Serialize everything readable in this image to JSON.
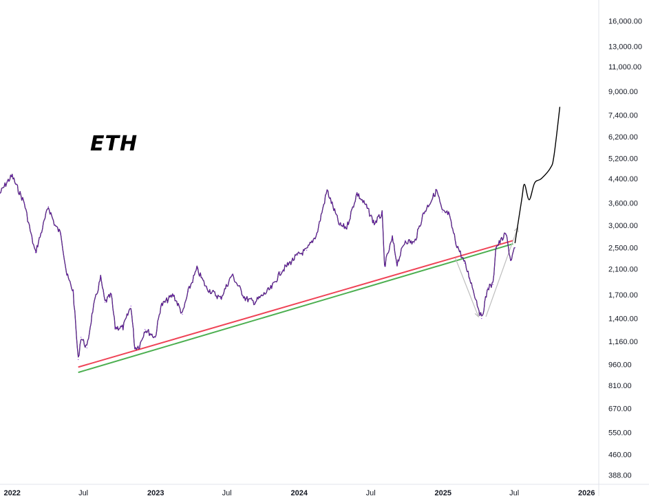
{
  "chart_data": {
    "type": "line",
    "title": "ETH",
    "y_scale": "log",
    "ylim": [
      360,
      19000
    ],
    "y_ticks": [
      "16,000.00",
      "13,000.00",
      "11,000.00",
      "9,000.00",
      "7,400.00",
      "6,200.00",
      "5,200.00",
      "4,400.00",
      "3,600.00",
      "3,000.00",
      "2,500.00",
      "2,100.00",
      "1,700.00",
      "1,400.00",
      "1,160.00",
      "960.00",
      "810.00",
      "670.00",
      "550.00",
      "460.00",
      "388.00"
    ],
    "x_ticks": [
      {
        "label": "2022",
        "major": true,
        "date": "2022-01-01"
      },
      {
        "label": "Jul",
        "major": false,
        "date": "2022-07-01"
      },
      {
        "label": "2023",
        "major": true,
        "date": "2023-01-01"
      },
      {
        "label": "Jul",
        "major": false,
        "date": "2023-07-01"
      },
      {
        "label": "2024",
        "major": true,
        "date": "2024-01-01"
      },
      {
        "label": "Jul",
        "major": false,
        "date": "2024-07-01"
      },
      {
        "label": "2025",
        "major": true,
        "date": "2025-01-01"
      },
      {
        "label": "Jul",
        "major": false,
        "date": "2025-07-01"
      },
      {
        "label": "2026",
        "major": true,
        "date": "2026-01-01"
      }
    ],
    "xlim": [
      "2021-12-01",
      "2026-02-01"
    ],
    "series": [
      {
        "role": "price",
        "color": "#7e22ce",
        "points": [
          [
            "2021-12-01",
            3900
          ],
          [
            "2021-12-20",
            4300
          ],
          [
            "2022-01-01",
            4500
          ],
          [
            "2022-01-10",
            4200
          ],
          [
            "2022-02-01",
            3600
          ],
          [
            "2022-02-20",
            2700
          ],
          [
            "2022-03-01",
            2400
          ],
          [
            "2022-03-15",
            2800
          ],
          [
            "2022-04-03",
            3500
          ],
          [
            "2022-04-20",
            3000
          ],
          [
            "2022-05-05",
            2800
          ],
          [
            "2022-05-20",
            2000
          ],
          [
            "2022-06-05",
            1750
          ],
          [
            "2022-06-18",
            1000
          ],
          [
            "2022-06-25",
            1200
          ],
          [
            "2022-07-10",
            1100
          ],
          [
            "2022-07-25",
            1500
          ],
          [
            "2022-08-14",
            1950
          ],
          [
            "2022-08-25",
            1600
          ],
          [
            "2022-09-10",
            1700
          ],
          [
            "2022-09-20",
            1300
          ],
          [
            "2022-10-10",
            1300
          ],
          [
            "2022-10-30",
            1550
          ],
          [
            "2022-11-09",
            1100
          ],
          [
            "2022-11-21",
            1120
          ],
          [
            "2022-12-05",
            1280
          ],
          [
            "2022-12-31",
            1200
          ],
          [
            "2023-01-14",
            1550
          ],
          [
            "2023-02-15",
            1700
          ],
          [
            "2023-03-10",
            1450
          ],
          [
            "2023-03-25",
            1750
          ],
          [
            "2023-04-16",
            2100
          ],
          [
            "2023-05-10",
            1800
          ],
          [
            "2023-06-15",
            1650
          ],
          [
            "2023-07-14",
            2000
          ],
          [
            "2023-08-17",
            1650
          ],
          [
            "2023-09-10",
            1600
          ],
          [
            "2023-10-23",
            1800
          ],
          [
            "2023-11-15",
            2050
          ],
          [
            "2023-12-28",
            2350
          ],
          [
            "2024-01-20",
            2450
          ],
          [
            "2024-02-15",
            2800
          ],
          [
            "2024-03-12",
            4000
          ],
          [
            "2024-04-13",
            3000
          ],
          [
            "2024-05-01",
            2950
          ],
          [
            "2024-05-27",
            3900
          ],
          [
            "2024-06-20",
            3500
          ],
          [
            "2024-07-10",
            3050
          ],
          [
            "2024-07-30",
            3300
          ],
          [
            "2024-08-05",
            2150
          ],
          [
            "2024-08-25",
            2700
          ],
          [
            "2024-09-06",
            2200
          ],
          [
            "2024-09-27",
            2650
          ],
          [
            "2024-10-20",
            2600
          ],
          [
            "2024-11-12",
            3300
          ],
          [
            "2024-12-16",
            4000
          ],
          [
            "2024-12-30",
            3350
          ],
          [
            "2025-01-15",
            3300
          ],
          [
            "2025-02-03",
            2600
          ],
          [
            "2025-02-25",
            2200
          ],
          [
            "2025-03-10",
            1950
          ],
          [
            "2025-04-09",
            1400
          ],
          [
            "2025-04-25",
            1800
          ],
          [
            "2025-05-08",
            1850
          ],
          [
            "2025-05-15",
            2500
          ],
          [
            "2025-06-10",
            2800
          ],
          [
            "2025-06-22",
            2250
          ],
          [
            "2025-07-03",
            2500
          ]
        ]
      },
      {
        "role": "projection",
        "color": "#000000",
        "points": [
          [
            "2025-07-03",
            2600
          ],
          [
            "2025-07-20",
            3700
          ],
          [
            "2025-07-27",
            4200
          ],
          [
            "2025-08-08",
            3700
          ],
          [
            "2025-08-22",
            4250
          ],
          [
            "2025-09-08",
            4400
          ],
          [
            "2025-10-01",
            4800
          ],
          [
            "2025-10-10",
            5300
          ],
          [
            "2025-10-25",
            7900
          ]
        ]
      }
    ],
    "trendlines": [
      {
        "color": "#ef4356",
        "from": [
          "2022-06-18",
          940
        ],
        "to": [
          "2025-06-28",
          2650
        ]
      },
      {
        "color": "#4caf50",
        "from": [
          "2022-06-18",
          900
        ],
        "to": [
          "2025-06-28",
          2580
        ]
      }
    ],
    "arrows": [
      {
        "color": "#bdbdbd",
        "from": [
          "2025-02-01",
          2300
        ],
        "to": [
          "2025-04-01",
          1420
        ]
      },
      {
        "color": "#bdbdbd",
        "from": [
          "2025-04-20",
          1420
        ],
        "to": [
          "2025-07-10",
          2950
        ]
      }
    ],
    "grid": false
  }
}
